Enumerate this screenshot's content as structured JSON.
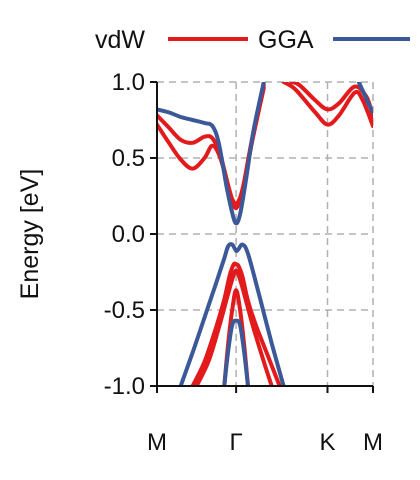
{
  "chart_data": {
    "type": "line",
    "title": "",
    "xlabel": "",
    "ylabel": "Energy [eV]",
    "ylim": [
      -1.0,
      1.0
    ],
    "y_ticks": [
      1.0,
      0.5,
      0.0,
      -0.5,
      -1.0
    ],
    "y_tick_labels": [
      "1.0",
      "0.5",
      "0.0",
      "-0.5",
      "-1.0"
    ],
    "x_ticks": [
      "M",
      "Γ",
      "K",
      "M"
    ],
    "x_tick_positions": [
      0,
      1,
      2.155,
      2.73
    ],
    "xlim": [
      0,
      2.73
    ],
    "grid": "dashed, at tick positions",
    "legend_placement": "top",
    "series": [
      {
        "name": "vdW",
        "color": "#e31a1c",
        "bands": [
          {
            "x": [
              0,
              0.15,
              0.3,
              0.45,
              0.6,
              0.7,
              0.8,
              0.9,
              0.95,
              1.0,
              1.05,
              1.1,
              1.2,
              1.35
            ],
            "y": [
              0.78,
              0.7,
              0.62,
              0.6,
              0.64,
              0.63,
              0.52,
              0.32,
              0.23,
              0.2,
              0.24,
              0.34,
              0.62,
              0.98
            ]
          },
          {
            "x": [
              0,
              0.15,
              0.3,
              0.45,
              0.6,
              0.7,
              0.8,
              0.9,
              0.95,
              1.0,
              1.05,
              1.1,
              1.2,
              1.35
            ],
            "y": [
              0.72,
              0.6,
              0.49,
              0.43,
              0.5,
              0.58,
              0.5,
              0.31,
              0.21,
              0.17,
              0.22,
              0.32,
              0.6,
              0.96
            ]
          },
          {
            "x": [
              1.7,
              1.8,
              2.0,
              2.155,
              2.3,
              2.5,
              2.65,
              2.73
            ],
            "y": [
              1.0,
              0.98,
              0.88,
              0.82,
              0.86,
              0.97,
              0.9,
              0.77
            ]
          },
          {
            "x": [
              1.6,
              1.75,
              2.0,
              2.155,
              2.3,
              2.5,
              2.6,
              2.73
            ],
            "y": [
              1.0,
              0.95,
              0.8,
              0.72,
              0.78,
              0.93,
              0.88,
              0.71
            ]
          },
          {
            "x": [
              0.45,
              0.6,
              0.75,
              0.85,
              0.92,
              0.97,
              1.0,
              1.03,
              1.08,
              1.15,
              1.25,
              1.4,
              1.55
            ],
            "y": [
              -1.0,
              -0.84,
              -0.61,
              -0.43,
              -0.27,
              -0.2,
              -0.2,
              -0.21,
              -0.28,
              -0.44,
              -0.6,
              -0.8,
              -1.0
            ]
          },
          {
            "x": [
              0.5,
              0.65,
              0.78,
              0.88,
              0.95,
              1.0,
              1.05,
              1.12,
              1.22,
              1.35,
              1.45
            ],
            "y": [
              -1.0,
              -0.84,
              -0.62,
              -0.43,
              -0.3,
              -0.24,
              -0.3,
              -0.43,
              -0.62,
              -0.84,
              -1.0
            ]
          },
          {
            "x": [
              0.85,
              0.9,
              0.95,
              1.0,
              1.05,
              1.1,
              1.15
            ],
            "y": [
              -1.0,
              -0.72,
              -0.5,
              -0.37,
              -0.5,
              -0.72,
              -1.0
            ]
          }
        ]
      },
      {
        "name": "GGA",
        "color": "#3b5998",
        "bands": [
          {
            "x": [
              0,
              0.15,
              0.3,
              0.45,
              0.6,
              0.7,
              0.78,
              0.88,
              0.95,
              1.0,
              1.05,
              1.12,
              1.22,
              1.35
            ],
            "y": [
              0.82,
              0.8,
              0.77,
              0.75,
              0.73,
              0.71,
              0.6,
              0.31,
              0.14,
              0.07,
              0.13,
              0.34,
              0.68,
              1.0
            ]
          },
          {
            "x": [
              2.55,
              2.62,
              2.68,
              2.73
            ],
            "y": [
              1.0,
              0.92,
              0.85,
              0.8
            ]
          },
          {
            "x": [
              0.3,
              0.45,
              0.6,
              0.75,
              0.85,
              0.9,
              0.95,
              1.0,
              1.03,
              1.08,
              1.15,
              1.3,
              1.45,
              1.6
            ],
            "y": [
              -1.0,
              -0.78,
              -0.55,
              -0.32,
              -0.16,
              -0.08,
              -0.07,
              -0.11,
              -0.1,
              -0.07,
              -0.13,
              -0.42,
              -0.72,
              -1.0
            ]
          },
          {
            "x": [
              0.85,
              0.9,
              0.95,
              1.0,
              1.05,
              1.1,
              1.15
            ],
            "y": [
              -1.0,
              -0.77,
              -0.6,
              -0.57,
              -0.6,
              -0.77,
              -1.0
            ]
          }
        ]
      }
    ]
  }
}
